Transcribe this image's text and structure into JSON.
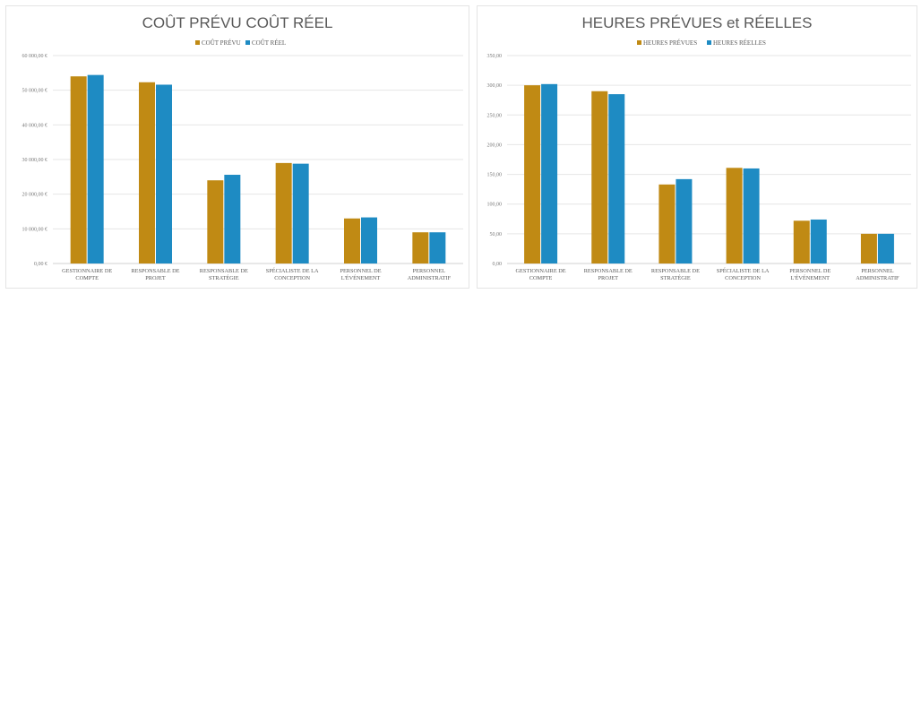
{
  "colors": {
    "planned": "#C08A14",
    "actual": "#1E8BC3"
  },
  "chart_data": [
    {
      "type": "bar",
      "title": "COÛT PRÉVU COÛT RÉEL",
      "categories": [
        [
          "GESTIONNAIRE DE",
          "COMPTE"
        ],
        [
          "RESPONSABLE DE",
          "PROJET"
        ],
        [
          "RESPONSABLE DE",
          "STRATÉGIE"
        ],
        [
          "SPÉCIALISTE DE LA",
          "CONCEPTION"
        ],
        [
          "PERSONNEL DE",
          "L'ÉVÉNEMENT"
        ],
        [
          "PERSONNEL",
          "ADMINISTRATIF"
        ]
      ],
      "series": [
        {
          "name": "COÛT PRÉVU",
          "values": [
            54000,
            52300,
            24000,
            29000,
            13000,
            9000
          ]
        },
        {
          "name": "COÛT RÉEL",
          "values": [
            54400,
            51600,
            25600,
            28800,
            13300,
            9000
          ]
        }
      ],
      "ylim": [
        0,
        60000
      ],
      "yticks": [
        "0,00 €",
        "10 000,00 €",
        "20 000,00 €",
        "30 000,00 €",
        "40 000,00 €",
        "50 000,00 €",
        "60 000,00 €"
      ],
      "grid": true,
      "legend": "top-center"
    },
    {
      "type": "bar",
      "title": "HEURES PRÉVUES et RÉELLES",
      "categories": [
        [
          "GESTIONNAIRE DE",
          "COMPTE"
        ],
        [
          "RESPONSABLE DE",
          "PROJET"
        ],
        [
          "RESPONSABLE DE",
          "STRATÉGIE"
        ],
        [
          "SPÉCIALISTE DE LA",
          "CONCEPTION"
        ],
        [
          "PERSONNEL DE",
          "L'ÉVÉNEMENT"
        ],
        [
          "PERSONNEL",
          "ADMINISTRATIF"
        ]
      ],
      "series": [
        {
          "name": "HEURES PRÉVUES",
          "values": [
            300,
            290,
            133,
            161,
            72,
            50
          ]
        },
        {
          "name": "HEURES RÉELLES",
          "values": [
            302,
            285,
            142,
            160,
            74,
            50
          ]
        }
      ],
      "ylim": [
        0,
        350
      ],
      "yticks": [
        "0,00",
        "50,00",
        "100,00",
        "150,00",
        "200,00",
        "250,00",
        "300,00",
        "350,00"
      ],
      "grid": true,
      "legend": "top-center"
    }
  ]
}
